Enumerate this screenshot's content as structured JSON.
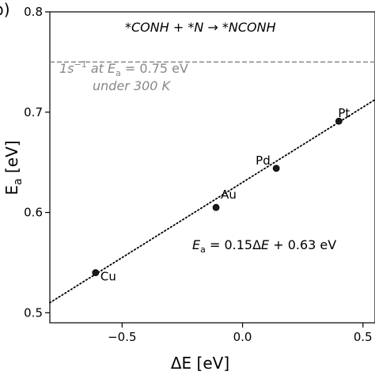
{
  "panel_label": "b)",
  "chart_data": {
    "type": "scatter",
    "xlabel": "ΔE [eV]",
    "ylabel": "E",
    "ylabel_sub": "a",
    "ylabel_unit": " [eV]",
    "xlim": [
      -0.8,
      0.55
    ],
    "ylim": [
      0.49,
      0.8
    ],
    "xticks": [
      -0.5,
      0.0,
      0.5
    ],
    "xtick_labels": [
      "−0.5",
      "0.0",
      "0.5"
    ],
    "yticks": [
      0.5,
      0.6,
      0.7,
      0.8
    ],
    "ytick_labels": [
      "0.5",
      "0.6",
      "0.7",
      "0.8"
    ],
    "grid": false,
    "points": [
      {
        "label": "Cu",
        "x": -0.61,
        "y": 0.54
      },
      {
        "label": "Au",
        "x": -0.11,
        "y": 0.605
      },
      {
        "label": "Pd",
        "x": 0.14,
        "y": 0.644
      },
      {
        "label": "Pt",
        "x": 0.4,
        "y": 0.691
      }
    ],
    "fit": {
      "slope": 0.15,
      "intercept": 0.63,
      "style": "dotted",
      "color": "#000000"
    },
    "reference_line": {
      "y": 0.75,
      "style": "dashed",
      "color": "#888888"
    },
    "annotations": {
      "reaction": {
        "pre": "*CONH + *N",
        "arrow": " → ",
        "post": "*NCONH"
      },
      "ref_line1": {
        "pre": "1s",
        "sup": "−1",
        "mid": " at ",
        "var": "E",
        "sub": "a",
        "post": " = 0.75 eV"
      },
      "ref_line2": {
        "a": "under",
        "b": " 300 K"
      },
      "equation": {
        "lhs": "E",
        "lhs_sub": "a",
        "mid": " = 0.15Δ",
        "var": "E",
        "post": " + 0.63 eV"
      }
    },
    "colors": {
      "points": "#1a1a1a",
      "reference": "#888888",
      "text": "#000000"
    }
  }
}
